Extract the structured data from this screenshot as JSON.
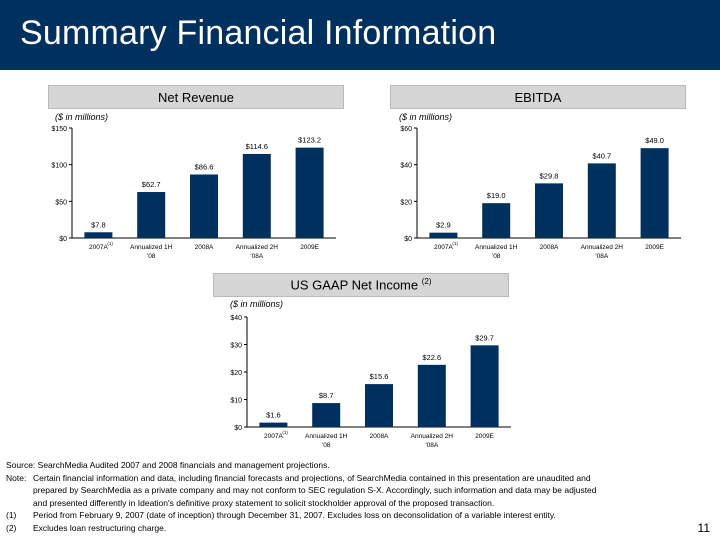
{
  "page": {
    "title": "Summary Financial Information",
    "page_number": "11",
    "colors": {
      "header": "#00305e",
      "bar": "#00305e",
      "chart_title_box": "#d6d6d6"
    }
  },
  "chart_data": [
    {
      "type": "bar",
      "title": "Net Revenue",
      "unit_label": "($ in millions)",
      "categories": [
        [
          "2007A",
          "(1)"
        ],
        [
          "Annualized 1H",
          "'08"
        ],
        [
          "2008A"
        ],
        [
          "Annualized 2H",
          "'08A"
        ],
        [
          "2009E"
        ]
      ],
      "values": [
        7.8,
        62.7,
        86.6,
        114.6,
        123.2
      ],
      "value_labels": [
        "$7.8",
        "$62.7",
        "$86.6",
        "$114.6",
        "$123.2"
      ],
      "ylim": [
        0,
        150
      ],
      "yticks": [
        0,
        50,
        100,
        150
      ],
      "ytick_labels": [
        "$0",
        "$50",
        "$100",
        "$150"
      ],
      "grid": false
    },
    {
      "type": "bar",
      "title": "EBITDA",
      "unit_label": "($ in millions)",
      "categories": [
        [
          "2007A",
          "(1)"
        ],
        [
          "Annualized 1H",
          "'08"
        ],
        [
          "2008A"
        ],
        [
          "Annualized 2H",
          "'08A"
        ],
        [
          "2009E"
        ]
      ],
      "values": [
        2.9,
        19.0,
        29.8,
        40.7,
        49.0
      ],
      "value_labels": [
        "$2.9",
        "$19.0",
        "$29.8",
        "$40.7",
        "$49.0"
      ],
      "ylim": [
        0,
        60
      ],
      "yticks": [
        0,
        20,
        40,
        60
      ],
      "ytick_labels": [
        "$0",
        "$20",
        "$40",
        "$60"
      ],
      "grid": false
    },
    {
      "type": "bar",
      "title": "US GAAP Net Income",
      "title_sup": "(2)",
      "unit_label": "($ in millions)",
      "categories": [
        [
          "2007A",
          "(1)"
        ],
        [
          "Annualized 1H",
          "'08"
        ],
        [
          "2008A"
        ],
        [
          "Annualized 2H",
          "'08A"
        ],
        [
          "2009E"
        ]
      ],
      "values": [
        1.6,
        8.7,
        15.6,
        22.6,
        29.7
      ],
      "value_labels": [
        "$1.6",
        "$8.7",
        "$15.6",
        "$22.6",
        "$29.7"
      ],
      "ylim": [
        0,
        40
      ],
      "yticks": [
        0,
        10,
        20,
        30,
        40
      ],
      "ytick_labels": [
        "$0",
        "$10",
        "$20",
        "$30",
        "$40"
      ],
      "grid": false
    }
  ],
  "notes": {
    "source": "Source: SearchMedia Audited 2007 and 2008 financials and management projections.",
    "note_label": "Note:",
    "note_line1": "Certain financial information and data, including financial forecasts and projections, of SearchMedia contained in this presentation are unaudited and",
    "note_line2": "prepared by SearchMedia as a private company and may not conform to SEC regulation S-X. Accordingly, such information and data may be adjusted",
    "note_line3": "and presented differently in Ideation's definitive proxy statement to solicit stockholder approval of the proposed transaction.",
    "footnotes": [
      {
        "label": "(1)",
        "text": "Period from February 9, 2007 (date of inception) through December 31, 2007. Excludes loss on deconsolidation of a variable interest entity."
      },
      {
        "label": "(2)",
        "text": "Excludes loan restructuring charge."
      }
    ]
  }
}
